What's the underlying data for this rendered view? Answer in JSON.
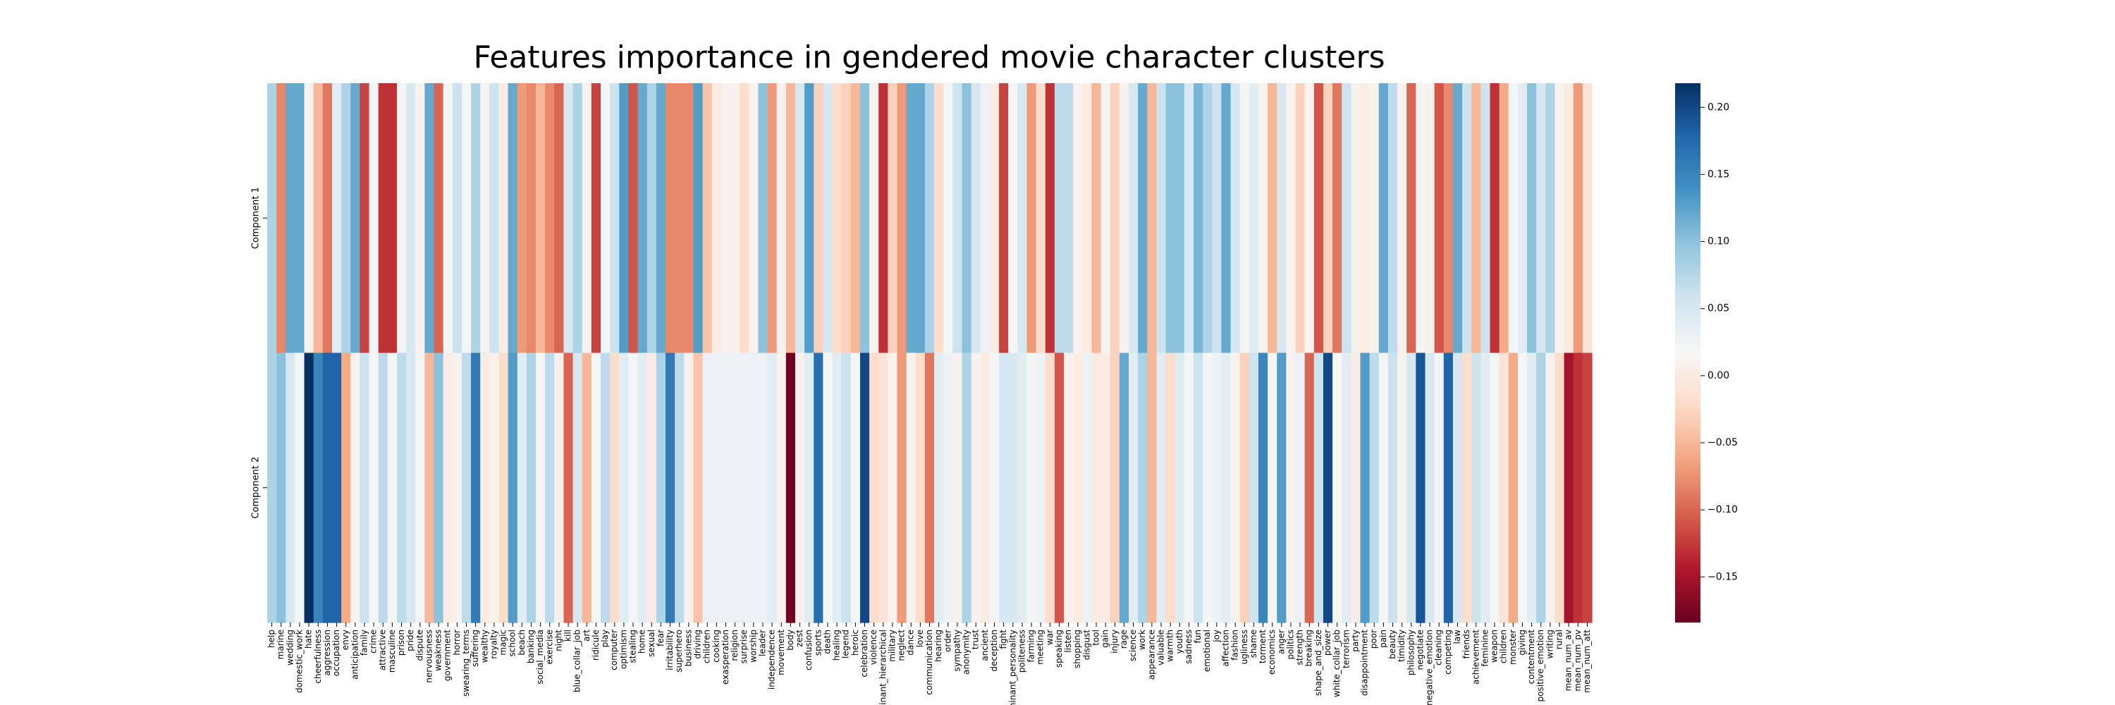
{
  "chart_data": {
    "type": "heatmap",
    "title": "Features importance in gendered movie character clusters",
    "colormap": "RdBu",
    "categories": [
      "help",
      "marine",
      "wedding",
      "domestic_work",
      "hate",
      "cheerfulness",
      "aggression",
      "occupation",
      "envy",
      "anticipation",
      "family",
      "crime",
      "attractive",
      "masculine",
      "prison",
      "pride",
      "dispute",
      "nervousness",
      "weakness",
      "government",
      "horror",
      "swearing_terms",
      "suffering",
      "wealthy",
      "royalty",
      "magic",
      "school",
      "beach",
      "banking",
      "social_media",
      "exercise",
      "night",
      "kill",
      "blue_collar_job",
      "art",
      "ridicule",
      "play",
      "computer",
      "optimism",
      "stealing",
      "home",
      "sexual",
      "fear",
      "irritability",
      "superhero",
      "business",
      "driving",
      "children",
      "cooking",
      "exasperation",
      "religion",
      "surprise",
      "worship",
      "leader",
      "independence",
      "movement",
      "body",
      "zest",
      "confusion",
      "sports",
      "death",
      "healing",
      "legend",
      "heroic",
      "celebration",
      "violence",
      "dominant_hierarchical",
      "military",
      "neglect",
      "dance",
      "love",
      "communication",
      "hearing",
      "order",
      "sympathy",
      "anonymity",
      "trust",
      "ancient",
      "deception",
      "fight",
      "dominant_personality",
      "politeness",
      "farming",
      "meeting",
      "war",
      "speaking",
      "listen",
      "shopping",
      "disgust",
      "tool",
      "gain",
      "injury",
      "rage",
      "science",
      "work",
      "appearance",
      "valuable",
      "warmth",
      "youth",
      "sadness",
      "fun",
      "emotional",
      "joy",
      "affection",
      "fashion",
      "ugliness",
      "shame",
      "torment",
      "economics",
      "anger",
      "politics",
      "strength",
      "breaking",
      "shape_and_size",
      "power",
      "white_collar_job",
      "terrorism",
      "party",
      "disappointment",
      "poor",
      "pain",
      "beauty",
      "timidity",
      "philosophy",
      "negotiate",
      "negative_emotion",
      "cleaning",
      "competing",
      "law",
      "friends",
      "achievement",
      "feminine",
      "weapon",
      "children",
      "monster",
      "giving",
      "contentment",
      "positive_emotion",
      "writing",
      "rural",
      "mean_num_av",
      "mean_num_pv",
      "mean_num_att"
    ],
    "series": [
      {
        "name": "Component 1",
        "values": [
          0.08,
          -0.08,
          0.12,
          0.12,
          0.01,
          -0.05,
          -0.09,
          0.04,
          0.08,
          0.12,
          -0.12,
          0.02,
          -0.13,
          -0.13,
          0.02,
          0.05,
          0.01,
          0.12,
          -0.1,
          0.02,
          0.06,
          0.02,
          0.08,
          0.01,
          0.06,
          0.0,
          0.12,
          -0.07,
          -0.08,
          -0.05,
          -0.08,
          -0.1,
          0.05,
          0.08,
          0.01,
          -0.12,
          0.02,
          0.06,
          0.13,
          -0.11,
          0.12,
          0.08,
          0.12,
          -0.08,
          -0.08,
          -0.08,
          0.13,
          -0.04,
          0.0,
          0.01,
          0.01,
          -0.02,
          0.01,
          0.1,
          -0.07,
          0.01,
          -0.05,
          0.05,
          0.13,
          -0.03,
          0.05,
          -0.02,
          -0.03,
          -0.05,
          0.1,
          0.01,
          -0.13,
          -0.03,
          -0.07,
          0.12,
          0.12,
          0.08,
          -0.02,
          0.02,
          0.06,
          0.1,
          0.05,
          0.03,
          0.0,
          -0.12,
          0.02,
          0.05,
          -0.07,
          -0.02,
          -0.13,
          0.07,
          0.07,
          0.01,
          0.0,
          -0.05,
          0.02,
          -0.03,
          0.01,
          0.05,
          0.12,
          -0.05,
          0.06,
          0.1,
          0.1,
          0.05,
          0.11,
          0.08,
          0.06,
          0.12,
          0.05,
          0.02,
          0.04,
          0.01,
          -0.05,
          0.05,
          0.01,
          -0.03,
          0.01,
          -0.11,
          -0.03,
          -0.09,
          0.06,
          0.01,
          0.0,
          0.01,
          0.12,
          0.07,
          0.01,
          -0.1,
          0.02,
          0.01,
          -0.11,
          -0.08,
          0.12,
          0.06,
          -0.05,
          0.06,
          -0.13,
          -0.06,
          0.02,
          0.04,
          0.1,
          0.05,
          0.08,
          0.01,
          0.0,
          -0.07,
          -0.01
        ]
      },
      {
        "name": "Component 2",
        "values": [
          0.08,
          0.1,
          0.05,
          0.02,
          0.22,
          0.15,
          0.18,
          0.18,
          -0.06,
          0.01,
          0.06,
          0.02,
          0.07,
          0.02,
          0.07,
          0.05,
          0.02,
          -0.05,
          0.1,
          0.0,
          0.01,
          0.07,
          0.16,
          0.0,
          0.01,
          -0.02,
          0.13,
          0.04,
          0.08,
          0.02,
          0.07,
          0.01,
          -0.1,
          0.05,
          -0.05,
          0.02,
          0.07,
          -0.02,
          0.04,
          0.02,
          0.04,
          0.0,
          0.08,
          0.16,
          0.07,
          0.01,
          -0.04,
          0.03,
          0.03,
          0.03,
          0.03,
          0.03,
          0.03,
          0.03,
          0.04,
          0.01,
          -0.18,
          0.01,
          0.04,
          0.17,
          0.02,
          0.04,
          0.06,
          0.02,
          0.2,
          -0.02,
          -0.01,
          0.01,
          -0.07,
          0.01,
          -0.02,
          -0.09,
          0.04,
          0.03,
          0.01,
          0.08,
          0.01,
          0.0,
          0.02,
          0.05,
          0.05,
          0.04,
          0.02,
          0.03,
          -0.02,
          -0.11,
          0.01,
          0.0,
          0.03,
          0.0,
          0.0,
          -0.03,
          0.12,
          0.04,
          0.08,
          -0.05,
          0.04,
          -0.02,
          0.04,
          0.02,
          0.06,
          0.02,
          0.03,
          0.04,
          0.01,
          -0.03,
          0.06,
          0.15,
          0.02,
          0.13,
          0.01,
          0.03,
          -0.1,
          0.06,
          0.2,
          0.02,
          0.04,
          0.0,
          0.13,
          0.07,
          0.02,
          0.06,
          0.01,
          0.05,
          0.19,
          0.05,
          0.02,
          0.18,
          0.05,
          -0.02,
          0.06,
          0.04,
          0.02,
          -0.01,
          -0.06,
          0.02,
          0.04,
          0.08,
          0.01,
          -0.02,
          -0.15,
          -0.13,
          -0.12
        ]
      }
    ],
    "clim": [
      -0.184,
      0.218
    ],
    "cticks": [
      {
        "value": -0.15,
        "label": "−0.15"
      },
      {
        "value": -0.1,
        "label": "−0.10"
      },
      {
        "value": -0.05,
        "label": "−0.05"
      },
      {
        "value": 0,
        "label": "0.00"
      },
      {
        "value": 0.05,
        "label": "0.05"
      },
      {
        "value": 0.1,
        "label": "0.10"
      },
      {
        "value": 0.15,
        "label": "0.15"
      },
      {
        "value": 0.2,
        "label": "0.20"
      }
    ]
  }
}
